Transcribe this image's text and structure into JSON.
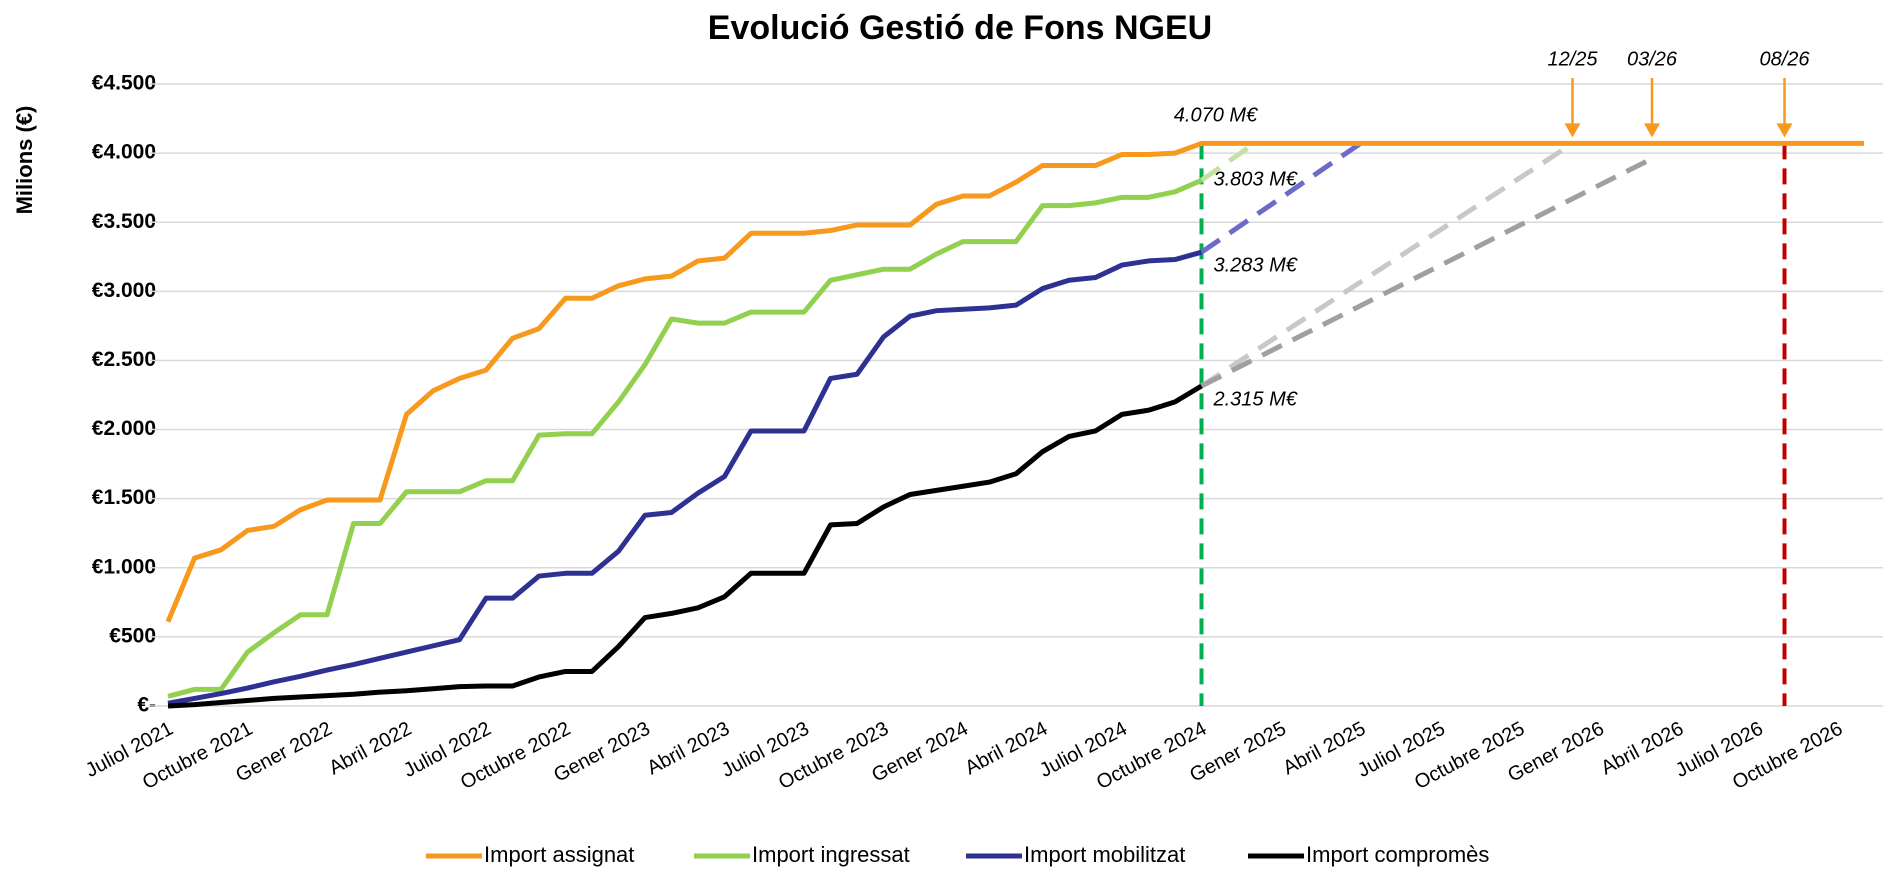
{
  "chart_data": {
    "type": "line",
    "title": "Evolució Gestió de Fons NGEU",
    "y_label": "Milions (€)",
    "categories": [
      "Juliol 2021",
      null,
      null,
      "Octubre 2021",
      null,
      null,
      "Gener 2022",
      null,
      null,
      "Abril 2022",
      null,
      null,
      "Juliol 2022",
      null,
      null,
      "Octubre 2022",
      null,
      null,
      "Gener 2023",
      null,
      null,
      "Abril 2023",
      null,
      null,
      "Juliol 2023",
      null,
      null,
      "Octubre 2023",
      null,
      null,
      "Gener 2024",
      null,
      null,
      "Abril 2024",
      null,
      null,
      "Juliol 2024",
      null,
      null,
      "Octubre 2024",
      null,
      null,
      "Gener 2025",
      null,
      null,
      "Abril 2025",
      null,
      null,
      "Juliol 2025",
      null,
      null,
      "Octubre 2025",
      null,
      null,
      "Gener 2026",
      null,
      null,
      "Abril 2026",
      null,
      null,
      "Juliol 2026",
      null,
      null,
      "Octubre 2026",
      null
    ],
    "ylim": [
      0,
      4500
    ],
    "yticks": [
      {
        "value": 0,
        "label": "€-"
      },
      {
        "value": 500,
        "label": "€500"
      },
      {
        "value": 1000,
        "label": "€1.000"
      },
      {
        "value": 1500,
        "label": "€1.500"
      },
      {
        "value": 2000,
        "label": "€2.000"
      },
      {
        "value": 2500,
        "label": "€2.500"
      },
      {
        "value": 3000,
        "label": "€3.000"
      },
      {
        "value": 3500,
        "label": "€3.500"
      },
      {
        "value": 4000,
        "label": "€4.000"
      },
      {
        "value": 4500,
        "label": "€4.500"
      }
    ],
    "grid": true,
    "legend": "bottom",
    "series": [
      {
        "name": "Import assignat",
        "color": "#f7991c",
        "values": [
          610,
          1070,
          1130,
          1270,
          1300,
          1420,
          1490,
          1490,
          1490,
          2110,
          2280,
          2370,
          2430,
          2660,
          2730,
          2950,
          2950,
          3040,
          3090,
          3110,
          3220,
          3240,
          3420,
          3420,
          3420,
          3440,
          3480,
          3480,
          3480,
          3630,
          3690,
          3690,
          3790,
          3910,
          3910,
          3910,
          3990,
          3990,
          4000,
          4070,
          4070,
          4070,
          4070,
          4070,
          4070,
          4070,
          4070,
          4070,
          4070,
          4070,
          4070,
          4070,
          4070,
          4070,
          4070,
          4070,
          4070,
          4070,
          4070,
          4070,
          4070,
          4070,
          4070,
          4070,
          4070
        ]
      },
      {
        "name": "Import ingressat",
        "color": "#92d050",
        "values": [
          70,
          120,
          120,
          390,
          530,
          660,
          660,
          1320,
          1320,
          1550,
          1550,
          1550,
          1630,
          1630,
          1960,
          1970,
          1970,
          2200,
          2470,
          2800,
          2770,
          2770,
          2850,
          2850,
          2850,
          3080,
          3120,
          3160,
          3160,
          3270,
          3360,
          3360,
          3360,
          3620,
          3620,
          3640,
          3680,
          3680,
          3720,
          3803,
          null,
          null,
          null,
          null,
          null,
          null,
          null,
          null,
          null,
          null,
          null,
          null,
          null,
          null,
          null,
          null,
          null,
          null,
          null,
          null,
          null,
          null,
          null,
          null,
          null
        ]
      },
      {
        "name": "Import mobilitzat",
        "color": "#2e3192",
        "values": [
          20,
          55,
          90,
          130,
          175,
          215,
          260,
          300,
          345,
          390,
          435,
          480,
          780,
          780,
          940,
          960,
          960,
          1120,
          1380,
          1400,
          1540,
          1660,
          1990,
          1990,
          1990,
          2370,
          2400,
          2670,
          2820,
          2860,
          2870,
          2880,
          2900,
          3020,
          3080,
          3100,
          3190,
          3220,
          3230,
          3283,
          null,
          null,
          null,
          null,
          null,
          null,
          null,
          null,
          null,
          null,
          null,
          null,
          null,
          null,
          null,
          null,
          null,
          null,
          null,
          null,
          null,
          null,
          null,
          null,
          null
        ]
      },
      {
        "name": "Import compromès",
        "color": "#000000",
        "values": [
          0,
          10,
          25,
          40,
          55,
          65,
          75,
          85,
          100,
          110,
          125,
          140,
          145,
          145,
          210,
          250,
          250,
          430,
          640,
          670,
          710,
          790,
          960,
          960,
          960,
          1310,
          1320,
          1440,
          1530,
          1560,
          1590,
          1620,
          1680,
          1840,
          1950,
          1990,
          2110,
          2140,
          2200,
          2315,
          null,
          null,
          null,
          null,
          null,
          null,
          null,
          null,
          null,
          null,
          null,
          null,
          null,
          null,
          null,
          null,
          null,
          null,
          null,
          null,
          null,
          null,
          null,
          null,
          null
        ]
      }
    ],
    "projections": [
      {
        "color": "#c5e0a0",
        "values": [
          null,
          null,
          null,
          null,
          null,
          null,
          null,
          null,
          null,
          null,
          null,
          null,
          null,
          null,
          null,
          null,
          null,
          null,
          null,
          null,
          null,
          null,
          null,
          null,
          null,
          null,
          null,
          null,
          null,
          null,
          null,
          null,
          null,
          null,
          null,
          null,
          null,
          null,
          null,
          3803,
          3937,
          4070,
          null,
          null,
          null,
          null,
          null,
          null,
          null,
          null,
          null,
          null,
          null,
          null,
          null,
          null,
          null,
          null,
          null,
          null,
          null,
          null,
          null,
          null,
          null
        ]
      },
      {
        "color": "#6b6bc8",
        "values": [
          null,
          null,
          null,
          null,
          null,
          null,
          null,
          null,
          null,
          null,
          null,
          null,
          null,
          null,
          null,
          null,
          null,
          null,
          null,
          null,
          null,
          null,
          null,
          null,
          null,
          null,
          null,
          null,
          null,
          null,
          null,
          null,
          null,
          null,
          null,
          null,
          null,
          null,
          null,
          3283,
          3414,
          3545,
          3676,
          3808,
          3939,
          4070,
          null,
          null,
          null,
          null,
          null,
          null,
          null,
          null,
          null,
          null,
          null,
          null,
          null,
          null,
          null,
          null,
          null,
          null,
          null
        ]
      },
      {
        "color": "#c8c8c8",
        "values": [
          null,
          null,
          null,
          null,
          null,
          null,
          null,
          null,
          null,
          null,
          null,
          null,
          null,
          null,
          null,
          null,
          null,
          null,
          null,
          null,
          null,
          null,
          null,
          null,
          null,
          null,
          null,
          null,
          null,
          null,
          null,
          null,
          null,
          null,
          null,
          null,
          null,
          null,
          null,
          2315,
          2440,
          2566,
          2691,
          2816,
          2942,
          3067,
          3192,
          3318,
          3443,
          3568,
          3694,
          3819,
          3944,
          4070,
          null,
          null,
          null,
          null,
          null,
          null,
          null,
          null,
          null,
          null,
          null
        ]
      },
      {
        "color": "#a0a0a0",
        "values": [
          null,
          null,
          null,
          null,
          null,
          null,
          null,
          null,
          null,
          null,
          null,
          null,
          null,
          null,
          null,
          null,
          null,
          null,
          null,
          null,
          null,
          null,
          null,
          null,
          null,
          null,
          null,
          null,
          null,
          null,
          null,
          null,
          null,
          null,
          null,
          null,
          null,
          null,
          null,
          2315,
          2412,
          2509,
          2606,
          2702,
          2799,
          2896,
          2993,
          3089,
          3186,
          3283,
          3380,
          3477,
          3573,
          3670,
          3767,
          3864,
          3960,
          null,
          null,
          null,
          null,
          null,
          null,
          null,
          null
        ]
      }
    ],
    "vlines": [
      {
        "x": 39,
        "color": "#00b050"
      },
      {
        "x": 61,
        "color": "#c00000"
      }
    ],
    "arrows": [
      {
        "text": "12/25",
        "x": 53,
        "color": "#f7991c"
      },
      {
        "text": "03/26",
        "x": 56,
        "color": "#f7991c"
      },
      {
        "text": "08/26",
        "x": 61,
        "color": "#f7991c"
      }
    ],
    "annotations": [
      {
        "text": "4.070 M€",
        "x": 39,
        "y": 4070,
        "position": "above"
      },
      {
        "text": "3.803 M€",
        "x": 39,
        "y": 3803,
        "position": "right"
      },
      {
        "text": "3.283 M€",
        "x": 39,
        "y": 3283,
        "position": "right"
      },
      {
        "text": "2.315 M€",
        "x": 39,
        "y": 2315,
        "position": "right"
      }
    ]
  }
}
